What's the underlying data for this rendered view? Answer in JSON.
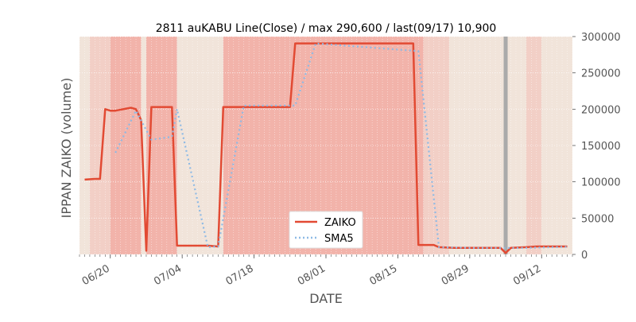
{
  "chart_data": {
    "type": "line",
    "title": "2811 auKABU Line(Close) / max 290,600 / last(09/17) 10,900",
    "xlabel": "DATE",
    "ylabel": "IPPAN ZAIKO (volume)",
    "ylim": [
      0,
      300000
    ],
    "y_ticks": [
      0,
      50000,
      100000,
      150000,
      200000,
      250000,
      300000
    ],
    "y_tick_labels": [
      "0",
      "50000",
      "100000",
      "150000",
      "200000",
      "250000",
      "300000"
    ],
    "y_axis_side": "right",
    "x_range": [
      "2019-06-14",
      "2019-09-18"
    ],
    "x_ticks": [
      "2019-06-20",
      "2019-07-04",
      "2019-07-18",
      "2019-08-01",
      "2019-08-15",
      "2019-08-29",
      "2019-09-12"
    ],
    "x_tick_labels": [
      "06/20",
      "07/04",
      "07/18",
      "08/01",
      "08/15",
      "08/29",
      "09/12"
    ],
    "grid": true,
    "legend_position": "bottom-center",
    "series": [
      {
        "name": "ZAIKO",
        "color": "#E24A33",
        "style": "solid",
        "points": [
          [
            "2019-06-15",
            103000
          ],
          [
            "2019-06-17",
            104000
          ],
          [
            "2019-06-18",
            104000
          ],
          [
            "2019-06-19",
            200000
          ],
          [
            "2019-06-20",
            198000
          ],
          [
            "2019-06-21",
            198000
          ],
          [
            "2019-06-24",
            202000
          ],
          [
            "2019-06-25",
            200000
          ],
          [
            "2019-06-26",
            185000
          ],
          [
            "2019-06-27",
            5000
          ],
          [
            "2019-06-28",
            203000
          ],
          [
            "2019-07-02",
            203000
          ],
          [
            "2019-07-03",
            12000
          ],
          [
            "2019-07-09",
            12000
          ],
          [
            "2019-07-11",
            11000
          ],
          [
            "2019-07-12",
            203000
          ],
          [
            "2019-07-25",
            203000
          ],
          [
            "2019-07-26",
            290600
          ],
          [
            "2019-08-18",
            290600
          ],
          [
            "2019-08-19",
            13000
          ],
          [
            "2019-08-22",
            13000
          ],
          [
            "2019-08-23",
            10000
          ],
          [
            "2019-08-26",
            9000
          ],
          [
            "2019-08-28",
            9000
          ],
          [
            "2019-09-04",
            9000
          ],
          [
            "2019-09-05",
            2000
          ],
          [
            "2019-09-06",
            9000
          ],
          [
            "2019-09-09",
            10000
          ],
          [
            "2019-09-11",
            11000
          ],
          [
            "2019-09-12",
            11000
          ],
          [
            "2019-09-17",
            10900
          ]
        ]
      },
      {
        "name": "SMA5",
        "color": "#8EBAE5",
        "style": "dotted",
        "points": [
          [
            "2019-06-21",
            140000
          ],
          [
            "2019-06-25",
            198000
          ],
          [
            "2019-06-28",
            158000
          ],
          [
            "2019-07-02",
            162000
          ],
          [
            "2019-07-03",
            200000
          ],
          [
            "2019-07-09",
            10000
          ],
          [
            "2019-07-11",
            11000
          ],
          [
            "2019-07-16",
            205000
          ],
          [
            "2019-07-26",
            205000
          ],
          [
            "2019-07-30",
            290600
          ],
          [
            "2019-08-19",
            280000
          ],
          [
            "2019-08-23",
            10000
          ],
          [
            "2019-08-29",
            9000
          ],
          [
            "2019-09-04",
            9000
          ],
          [
            "2019-09-09",
            9000
          ],
          [
            "2019-09-17",
            10500
          ]
        ]
      }
    ],
    "marker_line": {
      "date": "2019-09-05",
      "color": "#AAAAAA"
    }
  },
  "colors": {
    "axes_background": "#E5E5E5",
    "band_light": "#F1E4DA",
    "band_medium": "#F2CFC6",
    "band_dark": "#F2B3AA"
  },
  "background_bands": [
    {
      "start": "2019-06-14",
      "end": "2019-06-16",
      "shade": "band_light"
    },
    {
      "start": "2019-06-16",
      "end": "2019-06-20",
      "shade": "band_medium"
    },
    {
      "start": "2019-06-20",
      "end": "2019-06-26",
      "shade": "band_dark"
    },
    {
      "start": "2019-06-26",
      "end": "2019-06-27",
      "shade": "band_light"
    },
    {
      "start": "2019-06-27",
      "end": "2019-07-03",
      "shade": "band_dark"
    },
    {
      "start": "2019-07-03",
      "end": "2019-07-12",
      "shade": "band_light"
    },
    {
      "start": "2019-07-12",
      "end": "2019-07-25",
      "shade": "band_dark"
    },
    {
      "start": "2019-07-25",
      "end": "2019-08-20",
      "shade": "band_dark"
    },
    {
      "start": "2019-08-20",
      "end": "2019-08-25",
      "shade": "band_medium"
    },
    {
      "start": "2019-08-25",
      "end": "2019-09-04",
      "shade": "band_light"
    },
    {
      "start": "2019-09-04",
      "end": "2019-09-09",
      "shade": "band_light"
    },
    {
      "start": "2019-09-09",
      "end": "2019-09-12",
      "shade": "band_medium"
    },
    {
      "start": "2019-09-12",
      "end": "2019-09-18",
      "shade": "band_light"
    }
  ]
}
